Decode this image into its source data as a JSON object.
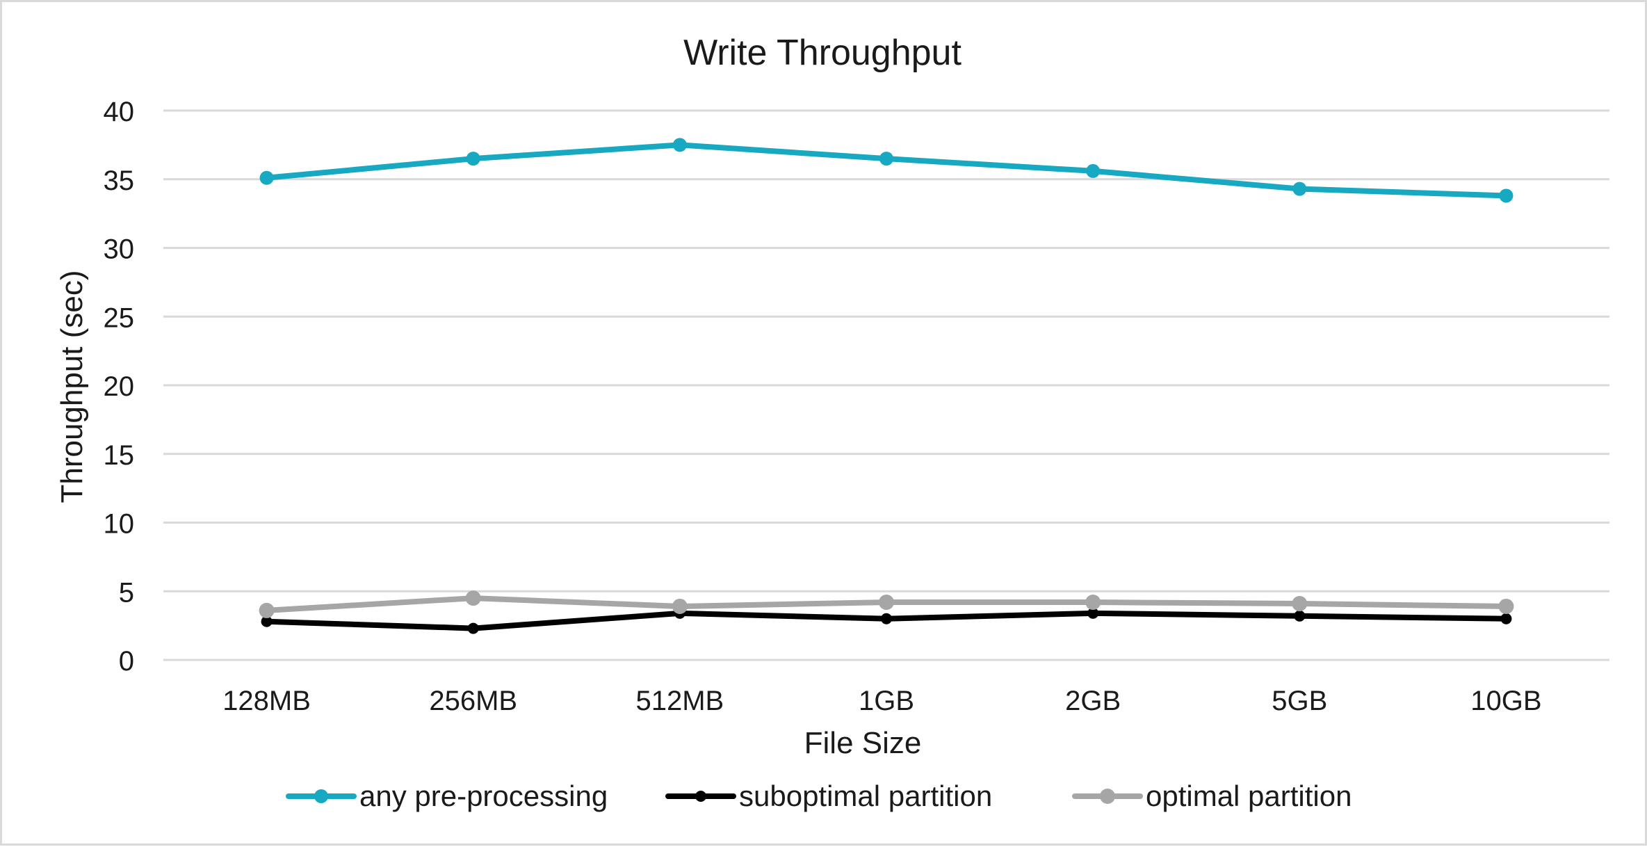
{
  "chart_data": {
    "type": "line",
    "title": "Write Throughput",
    "xlabel": "File Size",
    "ylabel": "Throughput (sec)",
    "categories": [
      "128MB",
      "256MB",
      "512MB",
      "1GB",
      "2GB",
      "5GB",
      "10GB"
    ],
    "ylim": [
      0,
      40
    ],
    "yticks": [
      0,
      5,
      10,
      15,
      20,
      25,
      30,
      35,
      40
    ],
    "grid": true,
    "legend_position": "bottom",
    "series": [
      {
        "name": "any pre-processing",
        "color": "#17a9c1",
        "values": [
          35.1,
          36.5,
          37.5,
          36.5,
          35.6,
          34.3,
          33.8
        ]
      },
      {
        "name": "suboptimal partition",
        "color": "#000000",
        "values": [
          2.8,
          2.3,
          3.4,
          3.0,
          3.4,
          3.2,
          3.0
        ]
      },
      {
        "name": "optimal partition",
        "color": "#a6a6a6",
        "values": [
          3.6,
          4.5,
          3.9,
          4.2,
          4.2,
          4.1,
          3.9
        ]
      }
    ]
  }
}
